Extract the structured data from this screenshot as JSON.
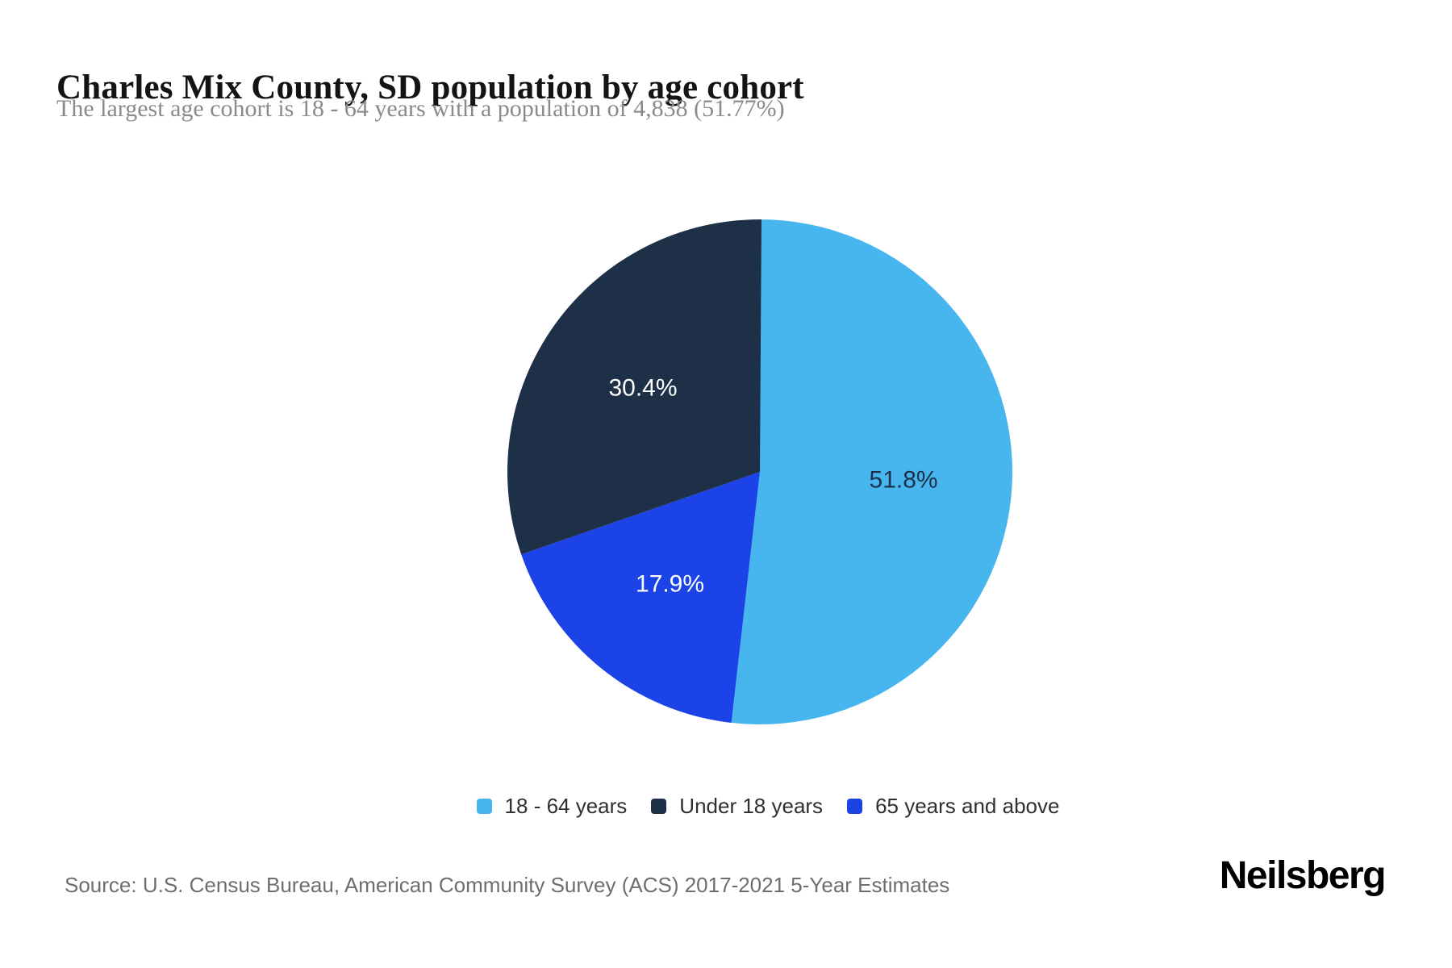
{
  "page": {
    "title": "Charles Mix County, SD population by age cohort",
    "subtitle": "The largest age cohort is 18 - 64 years with a population of 4,838 (51.77%)",
    "source": "Source: U.S. Census Bureau, American Community Survey (ACS) 2017-2021 5-Year Estimates",
    "brand": "Neilsberg"
  },
  "chart_data": {
    "type": "pie",
    "title": "Charles Mix County, SD population by age cohort",
    "subtitle": "The largest age cohort is 18 - 64 years with a population of 4,838 (51.77%)",
    "source": "Source: U.S. Census Bureau, American Community Survey (ACS) 2017-2021 5-Year Estimates",
    "legend_position": "bottom",
    "start_angle_deg": 0,
    "direction": "clockwise",
    "draw_order": [
      0,
      2,
      1
    ],
    "largest_slice": {
      "label": "18 - 64 years",
      "population": "4,838",
      "pct_text": "51.77%"
    },
    "slices": [
      {
        "label": "18 - 64 years",
        "value_pct": 51.8,
        "display": "51.8%",
        "color": "#47b6ee",
        "label_color": "#1e3048"
      },
      {
        "label": "Under 18 years",
        "value_pct": 30.4,
        "display": "30.4%",
        "color": "#1e3048",
        "label_color": "#ffffff"
      },
      {
        "label": "65 years and above",
        "value_pct": 17.9,
        "display": "17.9%",
        "color": "#1b43e8",
        "label_color": "#ffffff"
      }
    ]
  }
}
